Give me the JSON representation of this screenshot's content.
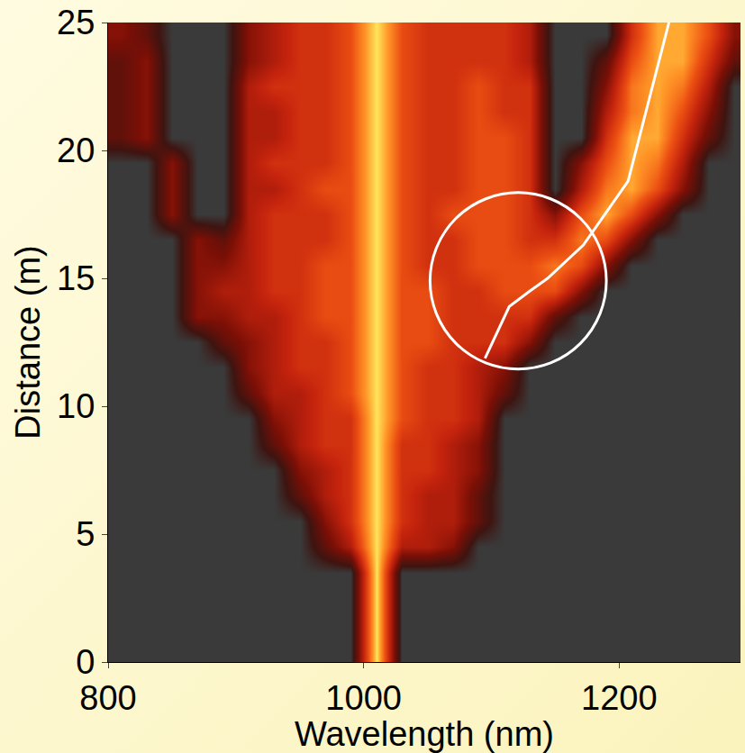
{
  "chart_data": {
    "type": "heatmap",
    "xlabel": "Wavelength (nm)",
    "ylabel": "Distance (m)",
    "xlim": [
      800,
      1295
    ],
    "ylim": [
      0,
      25
    ],
    "xticks": [
      800,
      1000,
      1200
    ],
    "yticks": [
      0,
      5,
      10,
      15,
      20,
      25
    ],
    "grid": false,
    "x": [
      810,
      830,
      850,
      870,
      890,
      910,
      930,
      950,
      970,
      990,
      1010,
      1030,
      1050,
      1070,
      1090,
      1110,
      1130,
      1150,
      1170,
      1190,
      1210,
      1230,
      1250,
      1270,
      1290
    ],
    "y": [
      0.5,
      1.5,
      2.5,
      3.5,
      4.5,
      5.5,
      6.5,
      7.5,
      8.5,
      9.5,
      10.5,
      11.5,
      12.5,
      13.5,
      14.5,
      15.5,
      16.5,
      17.5,
      18.5,
      19.5,
      20.5,
      21.5,
      22.5,
      23.5,
      24.5
    ],
    "zlim": [
      0,
      9
    ],
    "cells": [
      [
        0,
        0,
        0,
        0,
        0,
        0,
        0,
        0,
        0,
        0,
        9,
        0,
        0,
        0,
        0,
        0,
        0,
        0,
        0,
        0,
        0,
        0,
        0,
        0,
        0
      ],
      [
        0,
        0,
        0,
        0,
        0,
        0,
        0,
        0,
        0,
        0,
        9,
        0,
        0,
        0,
        0,
        0,
        0,
        0,
        0,
        0,
        0,
        0,
        0,
        0,
        0
      ],
      [
        0,
        0,
        0,
        0,
        0,
        0,
        0,
        0,
        0,
        0,
        9,
        0,
        0,
        0,
        0,
        0,
        0,
        0,
        0,
        0,
        0,
        0,
        0,
        0,
        0
      ],
      [
        0,
        0,
        0,
        0,
        0,
        0,
        0,
        0,
        0,
        0,
        9,
        0,
        0,
        0,
        0,
        0,
        0,
        0,
        0,
        0,
        0,
        0,
        0,
        0,
        0
      ],
      [
        0,
        0,
        0,
        0,
        0,
        0,
        0,
        0,
        2,
        4,
        9,
        4,
        4,
        3,
        0,
        0,
        0,
        0,
        0,
        0,
        0,
        0,
        0,
        0,
        0
      ],
      [
        0,
        0,
        0,
        0,
        0,
        0,
        0,
        0,
        3,
        5,
        9,
        5,
        4,
        4,
        2,
        0,
        0,
        0,
        0,
        0,
        0,
        0,
        0,
        0,
        0
      ],
      [
        0,
        0,
        0,
        0,
        0,
        0,
        0,
        2,
        4,
        5,
        9,
        5,
        4,
        4,
        2,
        0,
        0,
        0,
        0,
        0,
        0,
        0,
        0,
        0,
        0
      ],
      [
        0,
        0,
        0,
        0,
        0,
        0,
        0,
        3,
        4,
        5,
        9,
        5,
        5,
        4,
        3,
        0,
        0,
        0,
        0,
        0,
        0,
        0,
        0,
        0,
        0
      ],
      [
        0,
        0,
        0,
        0,
        0,
        0,
        2,
        4,
        5,
        5,
        9,
        5,
        5,
        4,
        3,
        0,
        0,
        0,
        0,
        0,
        0,
        0,
        0,
        0,
        0
      ],
      [
        0,
        0,
        0,
        0,
        0,
        0,
        3,
        4,
        5,
        5,
        9,
        6,
        5,
        5,
        4,
        0,
        0,
        0,
        0,
        0,
        0,
        0,
        0,
        0,
        0
      ],
      [
        0,
        0,
        0,
        0,
        0,
        2,
        4,
        4,
        5,
        6,
        9,
        6,
        5,
        5,
        4,
        2,
        0,
        0,
        0,
        0,
        0,
        0,
        0,
        0,
        0
      ],
      [
        0,
        0,
        0,
        0,
        0,
        3,
        4,
        5,
        5,
        6,
        9,
        6,
        5,
        5,
        4,
        3,
        0,
        0,
        0,
        0,
        0,
        0,
        0,
        0,
        0
      ],
      [
        0,
        0,
        0,
        0,
        2,
        3,
        4,
        5,
        5,
        6,
        9,
        6,
        6,
        5,
        5,
        5,
        3,
        0,
        0,
        0,
        0,
        0,
        0,
        0,
        0
      ],
      [
        0,
        0,
        0,
        3,
        3,
        4,
        4,
        5,
        6,
        6,
        9,
        6,
        6,
        5,
        5,
        5,
        5,
        2,
        0,
        0,
        0,
        0,
        0,
        0,
        0
      ],
      [
        0,
        0,
        0,
        3,
        4,
        4,
        5,
        5,
        6,
        6,
        9,
        6,
        6,
        5,
        5,
        6,
        6,
        6,
        3,
        0,
        0,
        0,
        0,
        0,
        0
      ],
      [
        0,
        0,
        0,
        3,
        3,
        4,
        5,
        5,
        6,
        6,
        9,
        6,
        5,
        5,
        6,
        6,
        6,
        7,
        6,
        3,
        0,
        0,
        0,
        0,
        0
      ],
      [
        0,
        0,
        0,
        3,
        2,
        4,
        5,
        5,
        5,
        6,
        9,
        6,
        5,
        5,
        6,
        6,
        5,
        5,
        7,
        6,
        3,
        0,
        0,
        0,
        0
      ],
      [
        0,
        0,
        3,
        0,
        0,
        4,
        5,
        5,
        5,
        6,
        9,
        6,
        5,
        6,
        6,
        6,
        5,
        3,
        6,
        8,
        6,
        3,
        0,
        0,
        0
      ],
      [
        0,
        0,
        3,
        0,
        0,
        4,
        4,
        5,
        6,
        6,
        9,
        6,
        5,
        5,
        6,
        6,
        5,
        0,
        4,
        7,
        8,
        6,
        3,
        0,
        0
      ],
      [
        0,
        0,
        3,
        0,
        0,
        4,
        5,
        5,
        5,
        6,
        9,
        6,
        5,
        5,
        6,
        6,
        5,
        0,
        3,
        6,
        8,
        7,
        4,
        0,
        0
      ],
      [
        2,
        3,
        0,
        0,
        0,
        4,
        4,
        5,
        5,
        6,
        9,
        6,
        5,
        5,
        6,
        6,
        5,
        0,
        0,
        5,
        8,
        8,
        5,
        2,
        0
      ],
      [
        2,
        3,
        0,
        0,
        0,
        4,
        4,
        5,
        5,
        6,
        9,
        6,
        5,
        5,
        6,
        5,
        5,
        0,
        0,
        4,
        7,
        8,
        6,
        3,
        0
      ],
      [
        2,
        3,
        0,
        0,
        0,
        4,
        5,
        5,
        5,
        6,
        9,
        6,
        5,
        5,
        6,
        5,
        5,
        0,
        0,
        3,
        7,
        8,
        7,
        4,
        0
      ],
      [
        2,
        3,
        0,
        0,
        0,
        3,
        4,
        5,
        5,
        6,
        9,
        6,
        5,
        5,
        5,
        5,
        4,
        0,
        0,
        2,
        6,
        8,
        8,
        5,
        2
      ],
      [
        3,
        2,
        0,
        0,
        0,
        3,
        4,
        5,
        5,
        6,
        9,
        6,
        5,
        5,
        5,
        5,
        4,
        0,
        0,
        0,
        5,
        8,
        8,
        6,
        3
      ]
    ],
    "series": [
      {
        "type": "line",
        "color": "#ffffff",
        "x": [
          1095,
          1114,
          1130,
          1144,
          1172,
          1207,
          1239
        ],
        "y": [
          11.87,
          13.9,
          14.5,
          15.0,
          16.3,
          18.8,
          25
        ]
      }
    ],
    "circle": {
      "x": [
        1052,
        1190
      ],
      "y": [
        11.45,
        18.35
      ],
      "color": "#ffffff"
    }
  }
}
